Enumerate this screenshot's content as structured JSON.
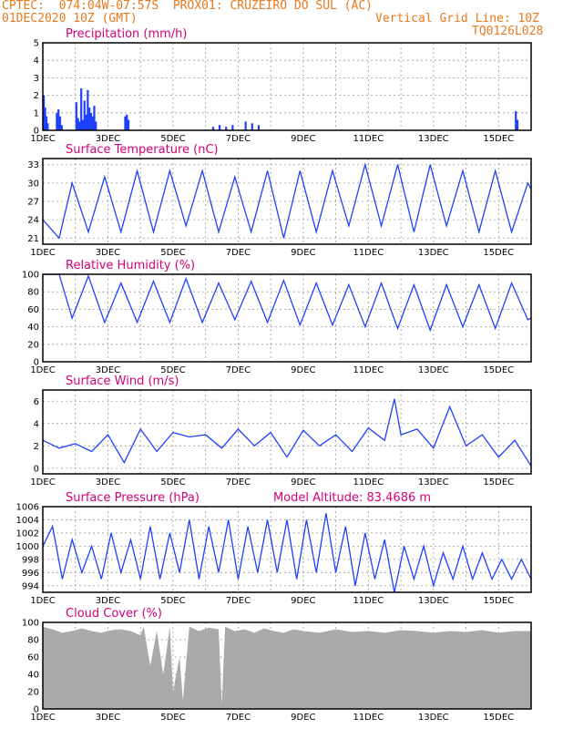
{
  "header": {
    "line1_left": "CPTEC:  074:04W-07:57S  PROX01: CRUZEIRO DO SUL (AC)",
    "line2_left": "01DEC2020 10Z (GMT)",
    "line2_right": "Vertical Grid Line: 10Z",
    "line3_right": "TQ0126L028",
    "color": "#e87a1e"
  },
  "colors": {
    "title": "#d4007a",
    "series": "#2040ff",
    "grid": "#999999",
    "cloud": "#aaaaaa"
  },
  "x_ticks": [
    "1DEC",
    "3DEC",
    "5DEC",
    "7DEC",
    "9DEC",
    "11DEC",
    "13DEC",
    "15DEC"
  ],
  "chart_data": [
    {
      "type": "bar",
      "title": "Precipitation (mm/h)",
      "ylim": [
        0,
        5
      ],
      "yticks": [
        0,
        1,
        2,
        3,
        4,
        5
      ],
      "x": [
        0,
        0.04,
        0.08,
        0.12,
        0.4,
        0.45,
        0.5,
        0.55,
        1.0,
        1.05,
        1.1,
        1.15,
        1.2,
        1.25,
        1.3,
        1.35,
        1.4,
        1.45,
        1.5,
        1.55,
        1.6,
        2.5,
        2.55,
        2.6,
        5.2,
        5.4,
        5.6,
        5.8,
        6.2,
        6.4,
        6.6,
        14.5,
        14.55
      ],
      "values": [
        2.0,
        1.3,
        0.8,
        0.4,
        1.0,
        1.2,
        0.8,
        0.3,
        1.6,
        0.7,
        0.5,
        2.4,
        0.6,
        1.7,
        0.9,
        2.3,
        1.3,
        1.0,
        0.8,
        1.4,
        0.5,
        0.8,
        0.9,
        0.6,
        0.2,
        0.3,
        0.2,
        0.3,
        0.5,
        0.4,
        0.3,
        1.1,
        0.6
      ]
    },
    {
      "type": "line",
      "title": "Surface Temperature (nC)",
      "ylim": [
        20,
        34
      ],
      "yticks": [
        21,
        24,
        27,
        30,
        33
      ],
      "x": [
        0,
        0.5,
        0.9,
        1.4,
        1.9,
        2.4,
        2.9,
        3.4,
        3.9,
        4.4,
        4.9,
        5.4,
        5.9,
        6.4,
        6.9,
        7.4,
        7.9,
        8.4,
        8.9,
        9.4,
        9.9,
        10.4,
        10.9,
        11.4,
        11.9,
        12.4,
        12.9,
        13.4,
        13.9,
        14.4,
        14.9,
        15.0
      ],
      "values": [
        24,
        21,
        30,
        22,
        31,
        22,
        32,
        22,
        32,
        23,
        32,
        22,
        31,
        22,
        32,
        21,
        32,
        22,
        32,
        23,
        33,
        23,
        33,
        22,
        33,
        23,
        32,
        22,
        32,
        22,
        30,
        29
      ]
    },
    {
      "type": "line",
      "title": "Relative Humidity (%)",
      "ylim": [
        0,
        100
      ],
      "yticks": [
        0,
        20,
        40,
        60,
        80,
        100
      ],
      "x": [
        0,
        0.5,
        0.9,
        1.4,
        1.9,
        2.4,
        2.9,
        3.4,
        3.9,
        4.4,
        4.9,
        5.4,
        5.9,
        6.4,
        6.9,
        7.4,
        7.9,
        8.4,
        8.9,
        9.4,
        9.9,
        10.4,
        10.9,
        11.4,
        11.9,
        12.4,
        12.9,
        13.4,
        13.9,
        14.4,
        14.9,
        15.0
      ],
      "values": [
        100,
        100,
        50,
        98,
        45,
        90,
        45,
        92,
        45,
        95,
        45,
        90,
        48,
        92,
        45,
        93,
        42,
        90,
        42,
        88,
        40,
        90,
        38,
        88,
        36,
        88,
        40,
        88,
        38,
        90,
        48,
        50
      ]
    },
    {
      "type": "line",
      "title": "Surface Wind (m/s)",
      "ylim": [
        -0.5,
        7
      ],
      "yticks": [
        0,
        2,
        4,
        6
      ],
      "x": [
        0,
        0.5,
        1.0,
        1.5,
        2.0,
        2.5,
        3.0,
        3.5,
        4.0,
        4.5,
        5.0,
        5.5,
        6.0,
        6.5,
        7.0,
        7.5,
        8.0,
        8.5,
        9.0,
        9.5,
        10.0,
        10.5,
        10.8,
        11.0,
        11.5,
        12.0,
        12.5,
        13.0,
        13.5,
        14.0,
        14.5,
        15.0
      ],
      "values": [
        2.5,
        1.8,
        2.2,
        1.5,
        3.0,
        0.5,
        3.5,
        1.5,
        3.2,
        2.8,
        3.0,
        1.8,
        3.5,
        2.0,
        3.2,
        1.0,
        3.4,
        2.0,
        3.0,
        1.5,
        3.6,
        2.5,
        6.2,
        3.0,
        3.5,
        1.8,
        5.5,
        2.0,
        3.0,
        1.0,
        2.5,
        0.2
      ]
    },
    {
      "type": "line",
      "title": "Surface Pressure (hPa)",
      "annotation": "Model Altitude: 83.4686 m",
      "ylim": [
        993,
        1006
      ],
      "yticks": [
        994,
        996,
        998,
        1000,
        1002,
        1004,
        1006
      ],
      "x": [
        0,
        0.3,
        0.6,
        0.9,
        1.2,
        1.5,
        1.8,
        2.1,
        2.4,
        2.7,
        3.0,
        3.3,
        3.6,
        3.9,
        4.2,
        4.5,
        4.8,
        5.1,
        5.4,
        5.7,
        6.0,
        6.3,
        6.6,
        6.9,
        7.2,
        7.5,
        7.8,
        8.1,
        8.4,
        8.7,
        9.0,
        9.3,
        9.6,
        9.9,
        10.2,
        10.5,
        10.8,
        11.1,
        11.4,
        11.7,
        12.0,
        12.3,
        12.6,
        12.9,
        13.2,
        13.5,
        13.8,
        14.1,
        14.4,
        14.7,
        15.0
      ],
      "values": [
        1000,
        1003,
        995,
        1001,
        996,
        1000,
        995,
        1002,
        996,
        1001,
        995,
        1003,
        995,
        1002,
        996,
        1004,
        995,
        1003,
        996,
        1004,
        995,
        1003,
        996,
        1004,
        996,
        1004,
        995,
        1004,
        996,
        1005,
        996,
        1003,
        994,
        1002,
        995,
        1001,
        993,
        1000,
        995,
        1000,
        994,
        999,
        995,
        1000,
        995,
        999,
        995,
        998,
        995,
        998,
        995
      ]
    },
    {
      "type": "area",
      "title": "Cloud Cover (%)",
      "ylim": [
        0,
        100
      ],
      "yticks": [
        0,
        20,
        40,
        60,
        80,
        100
      ],
      "x": [
        0,
        0.3,
        0.6,
        0.9,
        1.2,
        1.5,
        1.8,
        2.1,
        2.4,
        2.7,
        3.0,
        3.1,
        3.3,
        3.5,
        3.7,
        3.9,
        4.0,
        4.2,
        4.3,
        4.5,
        4.8,
        5.1,
        5.4,
        5.5,
        5.6,
        5.9,
        6.2,
        6.5,
        6.8,
        7.1,
        7.4,
        7.7,
        8.0,
        8.5,
        9.0,
        9.5,
        10.0,
        10.5,
        11.0,
        11.5,
        12.0,
        12.5,
        13.0,
        13.5,
        14.0,
        14.5,
        15.0
      ],
      "values": [
        95,
        92,
        88,
        90,
        93,
        90,
        88,
        91,
        92,
        90,
        85,
        95,
        50,
        90,
        40,
        95,
        20,
        60,
        10,
        95,
        90,
        94,
        92,
        5,
        95,
        90,
        92,
        88,
        93,
        90,
        88,
        92,
        90,
        88,
        92,
        89,
        90,
        88,
        91,
        90,
        88,
        90,
        89,
        91,
        88,
        90,
        90
      ]
    }
  ]
}
